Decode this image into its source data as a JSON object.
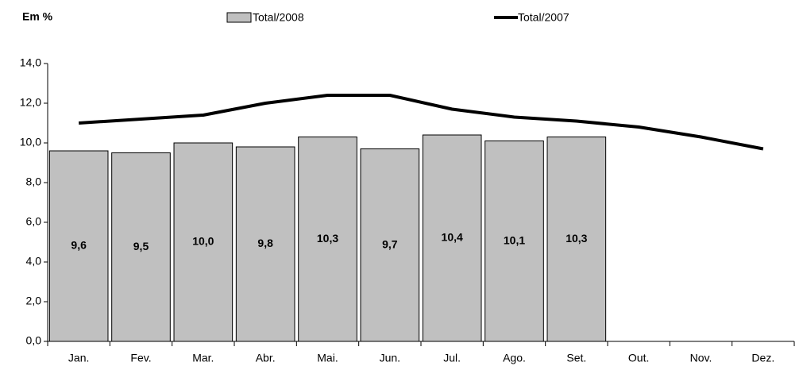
{
  "chart_data": {
    "type": "bar",
    "unit_label": "Em %",
    "categories": [
      "Jan.",
      "Fev.",
      "Mar.",
      "Abr.",
      "Mai.",
      "Jun.",
      "Jul.",
      "Ago.",
      "Set.",
      "Out.",
      "Nov.",
      "Dez."
    ],
    "series": [
      {
        "name": "Total/2008",
        "type": "bar",
        "color": "#c0c0c0",
        "values": [
          9.6,
          9.5,
          10.0,
          9.8,
          10.3,
          9.7,
          10.4,
          10.1,
          10.3,
          null,
          null,
          null
        ],
        "value_labels": [
          "9,6",
          "9,5",
          "10,0",
          "9,8",
          "10,3",
          "9,7",
          "10,4",
          "10,1",
          "10,3",
          null,
          null,
          null
        ]
      },
      {
        "name": "Total/2007",
        "type": "line",
        "color": "#000000",
        "values": [
          11.0,
          11.2,
          11.4,
          12.0,
          12.4,
          12.4,
          11.7,
          11.3,
          11.1,
          10.8,
          10.3,
          9.7
        ]
      }
    ],
    "ylim": [
      0,
      14
    ],
    "yticks": [
      {
        "value": 0,
        "label": "0,0"
      },
      {
        "value": 2,
        "label": "2,0"
      },
      {
        "value": 4,
        "label": "4,0"
      },
      {
        "value": 6,
        "label": "6,0"
      },
      {
        "value": 8,
        "label": "8,0"
      },
      {
        "value": 10,
        "label": "10,0"
      },
      {
        "value": 12,
        "label": "12,0"
      },
      {
        "value": 14,
        "label": "14,0"
      }
    ]
  }
}
